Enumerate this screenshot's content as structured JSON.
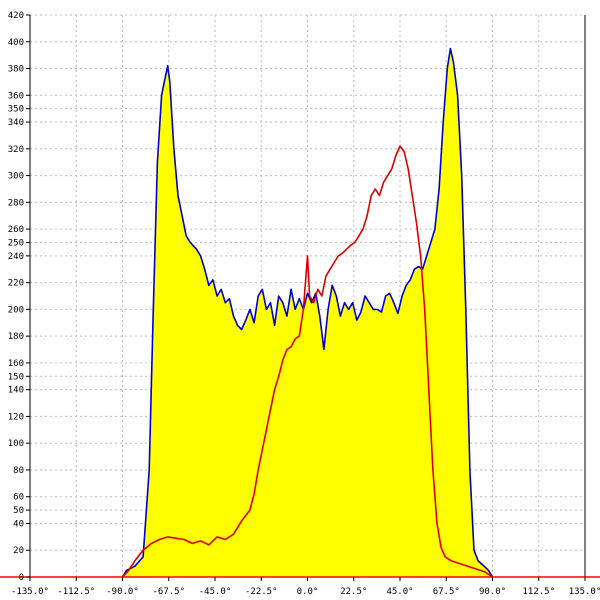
{
  "chart_data": {
    "type": "area",
    "title": "",
    "xlabel": "",
    "ylabel": "",
    "xlim": [
      -135,
      135
    ],
    "ylim": [
      0,
      420
    ],
    "grid": true,
    "x_ticks": [
      -135,
      -112.5,
      -90,
      -67.5,
      -45,
      -22.5,
      0,
      22.5,
      45,
      67.5,
      90,
      112.5,
      135
    ],
    "x_tick_labels": [
      "-135.0°",
      "-112.5°",
      "-90.0°",
      "-67.5°",
      "-45.0°",
      "-22.5°",
      "0.0°",
      "22.5°",
      "45.0°",
      "67.5°",
      "90.0°",
      "112.5°",
      "135.0°"
    ],
    "y_ticks": [
      0,
      20,
      40,
      50,
      60,
      80,
      100,
      120,
      140,
      150,
      160,
      180,
      200,
      220,
      240,
      250,
      260,
      280,
      300,
      320,
      340,
      350,
      360,
      380,
      400,
      420
    ],
    "y_tick_labels": [
      "0",
      "20",
      "40",
      "50",
      "60",
      "80",
      "100",
      "120",
      "140",
      "150",
      "160",
      "180",
      "200",
      "220",
      "240",
      "250",
      "260",
      "280",
      "300",
      "320",
      "340",
      "350",
      "360",
      "380",
      "400",
      "420"
    ],
    "series": [
      {
        "color": "#0000cc",
        "fill": "#ffff00",
        "points": [
          [
            -90,
            0
          ],
          [
            -88,
            5
          ],
          [
            -84,
            8
          ],
          [
            -80,
            15
          ],
          [
            -77,
            80
          ],
          [
            -75,
            200
          ],
          [
            -73,
            310
          ],
          [
            -71,
            360
          ],
          [
            -69,
            375
          ],
          [
            -68,
            382
          ],
          [
            -67,
            370
          ],
          [
            -65,
            320
          ],
          [
            -63,
            285
          ],
          [
            -61,
            270
          ],
          [
            -59,
            255
          ],
          [
            -57,
            250
          ],
          [
            -54,
            245
          ],
          [
            -52,
            240
          ],
          [
            -50,
            230
          ],
          [
            -48,
            218
          ],
          [
            -46,
            222
          ],
          [
            -44,
            210
          ],
          [
            -42,
            215
          ],
          [
            -40,
            205
          ],
          [
            -38,
            208
          ],
          [
            -36,
            195
          ],
          [
            -34,
            188
          ],
          [
            -32,
            185
          ],
          [
            -30,
            192
          ],
          [
            -28,
            200
          ],
          [
            -26,
            190
          ],
          [
            -24,
            210
          ],
          [
            -22,
            215
          ],
          [
            -20,
            200
          ],
          [
            -18,
            205
          ],
          [
            -16,
            188
          ],
          [
            -14,
            210
          ],
          [
            -12,
            205
          ],
          [
            -10,
            195
          ],
          [
            -8,
            215
          ],
          [
            -6,
            200
          ],
          [
            -4,
            208
          ],
          [
            -2,
            200
          ],
          [
            0,
            212
          ],
          [
            2,
            205
          ],
          [
            4,
            212
          ],
          [
            6,
            195
          ],
          [
            8,
            170
          ],
          [
            10,
            200
          ],
          [
            12,
            218
          ],
          [
            14,
            210
          ],
          [
            16,
            195
          ],
          [
            18,
            205
          ],
          [
            20,
            200
          ],
          [
            22,
            205
          ],
          [
            24,
            192
          ],
          [
            26,
            198
          ],
          [
            28,
            210
          ],
          [
            30,
            205
          ],
          [
            32,
            200
          ],
          [
            34,
            200
          ],
          [
            36,
            198
          ],
          [
            38,
            210
          ],
          [
            40,
            212
          ],
          [
            42,
            205
          ],
          [
            44,
            197
          ],
          [
            46,
            210
          ],
          [
            48,
            218
          ],
          [
            50,
            222
          ],
          [
            52,
            230
          ],
          [
            54,
            232
          ],
          [
            56,
            230
          ],
          [
            58,
            240
          ],
          [
            60,
            250
          ],
          [
            62,
            260
          ],
          [
            64,
            290
          ],
          [
            66,
            340
          ],
          [
            68,
            380
          ],
          [
            69.5,
            395
          ],
          [
            71,
            385
          ],
          [
            73,
            360
          ],
          [
            75,
            300
          ],
          [
            77,
            200
          ],
          [
            79,
            80
          ],
          [
            81,
            20
          ],
          [
            83,
            12
          ],
          [
            86,
            8
          ],
          [
            88,
            5
          ],
          [
            90,
            0
          ]
        ]
      },
      {
        "color": "#dd0000",
        "fill": "none",
        "points": [
          [
            -90,
            0
          ],
          [
            -87,
            5
          ],
          [
            -84,
            12
          ],
          [
            -80,
            20
          ],
          [
            -76,
            25
          ],
          [
            -72,
            28
          ],
          [
            -68,
            30
          ],
          [
            -64,
            29
          ],
          [
            -60,
            28
          ],
          [
            -56,
            25
          ],
          [
            -52,
            27
          ],
          [
            -48,
            24
          ],
          [
            -44,
            30
          ],
          [
            -40,
            28
          ],
          [
            -36,
            32
          ],
          [
            -32,
            42
          ],
          [
            -28,
            50
          ],
          [
            -26,
            62
          ],
          [
            -24,
            80
          ],
          [
            -22,
            95
          ],
          [
            -20,
            110
          ],
          [
            -18,
            125
          ],
          [
            -16,
            140
          ],
          [
            -14,
            150
          ],
          [
            -12,
            162
          ],
          [
            -10,
            170
          ],
          [
            -8,
            172
          ],
          [
            -6,
            178
          ],
          [
            -4,
            180
          ],
          [
            -2,
            200
          ],
          [
            0,
            240
          ],
          [
            1,
            210
          ],
          [
            3,
            205
          ],
          [
            5,
            215
          ],
          [
            7,
            210
          ],
          [
            9,
            225
          ],
          [
            11,
            230
          ],
          [
            13,
            235
          ],
          [
            15,
            240
          ],
          [
            17,
            242
          ],
          [
            19,
            245
          ],
          [
            21,
            248
          ],
          [
            23,
            250
          ],
          [
            25,
            255
          ],
          [
            27,
            260
          ],
          [
            29,
            270
          ],
          [
            31,
            285
          ],
          [
            33,
            290
          ],
          [
            35,
            285
          ],
          [
            37,
            295
          ],
          [
            39,
            300
          ],
          [
            41,
            305
          ],
          [
            43,
            315
          ],
          [
            45,
            322
          ],
          [
            47,
            318
          ],
          [
            49,
            305
          ],
          [
            51,
            285
          ],
          [
            53,
            265
          ],
          [
            55,
            240
          ],
          [
            57,
            200
          ],
          [
            59,
            140
          ],
          [
            61,
            80
          ],
          [
            63,
            40
          ],
          [
            65,
            22
          ],
          [
            67,
            15
          ],
          [
            70,
            12
          ],
          [
            74,
            10
          ],
          [
            78,
            8
          ],
          [
            82,
            6
          ],
          [
            86,
            4
          ],
          [
            90,
            0
          ]
        ]
      }
    ]
  }
}
